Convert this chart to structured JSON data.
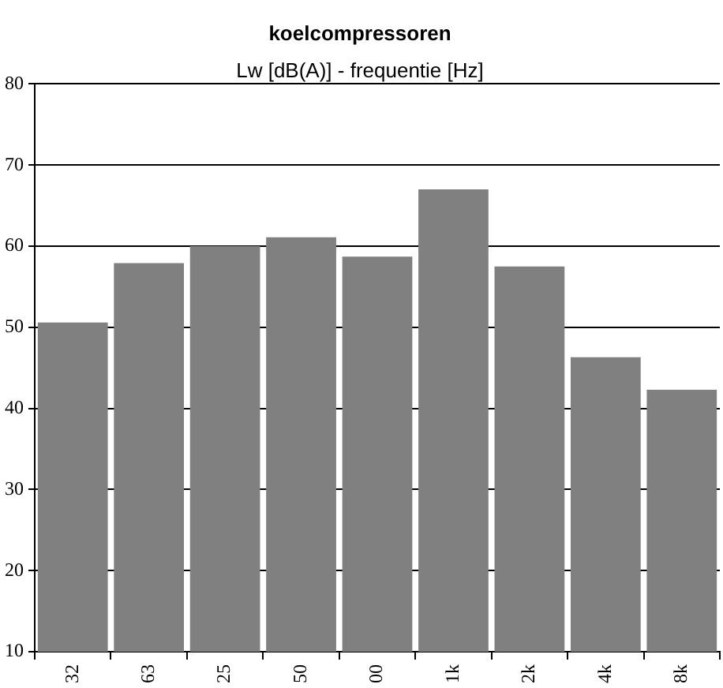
{
  "chart_data": {
    "type": "bar",
    "title": "koelcompressoren",
    "subtitle": "Lw [dB(A)] - frequentie [Hz]",
    "categories": [
      "32",
      "63",
      "25",
      "50",
      "00",
      "1k",
      "2k",
      "4k",
      "8k"
    ],
    "values": [
      50.6,
      57.9,
      60,
      61.1,
      58.7,
      67,
      57.5,
      46.3,
      42.3
    ],
    "color": "#808080",
    "ylim": [
      10,
      80
    ],
    "yticks": [
      10,
      20,
      30,
      40,
      50,
      60,
      70,
      80
    ],
    "grid": "y",
    "legend": false
  }
}
